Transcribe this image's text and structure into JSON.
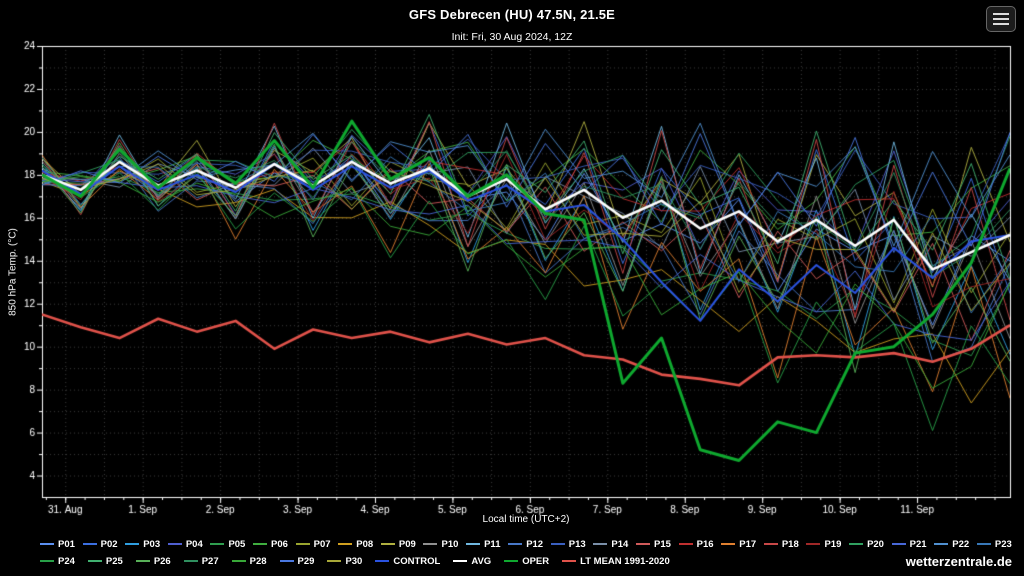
{
  "header": {
    "title": "GFS Debrecen (HU) 47.5N, 21.5E",
    "subtitle": "Init: Fri, 30 Aug 2024, 12Z"
  },
  "watermark": "wetterzentrale.de",
  "axes": {
    "x_label": "Local time (UTC+2)",
    "y_label": "850 hPa Temp. (°C)",
    "y_tick_labels": [
      24,
      22,
      20,
      18,
      16,
      14,
      12,
      10,
      8,
      6,
      4
    ],
    "x_tick_labels": [
      "31. Aug",
      "1. Sep",
      "2. Sep",
      "3. Sep",
      "4. Sep",
      "5. Sep",
      "6. Sep",
      "7. Sep",
      "8. Sep",
      "9. Sep",
      "10. Sep",
      "11. Sep"
    ]
  },
  "chart_data": {
    "type": "line",
    "title": "GFS Debrecen (HU) 47.5N, 21.5E",
    "subtitle": "Init: Fri, 30 Aug 2024, 12Z",
    "xlabel": "Local time (UTC+2)",
    "ylabel": "850 hPa Temp. (°C)",
    "ylim": [
      3,
      24
    ],
    "x_span_days": 12.5,
    "x_step_days": 0.5,
    "x_label_offset_days": 0.3,
    "grid_on": true,
    "grid_color": "#3d3d3d",
    "axis_color": "#ffffff",
    "background": "#000000",
    "legend_position": "bottom",
    "series": [
      {
        "name": "AVG",
        "color": "#ffffff",
        "width": 2.6,
        "values": [
          18.0,
          17.3,
          18.6,
          17.5,
          18.2,
          17.4,
          18.5,
          17.5,
          18.6,
          17.6,
          18.3,
          17.0,
          17.8,
          16.4,
          17.3,
          16.0,
          16.8,
          15.5,
          16.3,
          14.9,
          15.9,
          14.7,
          15.9,
          13.6,
          14.4,
          15.2
        ]
      },
      {
        "name": "OPER",
        "color": "#0fa82f",
        "width": 3,
        "values": [
          18.0,
          17.0,
          19.2,
          17.4,
          18.8,
          17.6,
          19.6,
          17.4,
          20.5,
          17.8,
          18.8,
          17.0,
          18.0,
          16.2,
          15.9,
          8.3,
          10.4,
          5.2,
          4.7,
          6.5,
          6.0,
          9.7,
          10.0,
          11.5,
          13.9,
          18.3
        ]
      },
      {
        "name": "CONTROL",
        "color": "#2a52e0",
        "width": 2,
        "values": [
          18.2,
          17.1,
          18.4,
          17.3,
          18.0,
          17.2,
          18.5,
          17.3,
          18.4,
          17.4,
          18.2,
          16.8,
          17.5,
          16.3,
          16.6,
          15.0,
          13.0,
          11.2,
          13.6,
          12.1,
          13.8,
          12.5,
          14.6,
          13.2,
          14.9,
          15.2
        ]
      },
      {
        "name": "LT MEAN 1991-2020",
        "color": "#e0524a",
        "width": 2.6,
        "values": [
          11.5,
          10.9,
          10.4,
          11.3,
          10.7,
          11.2,
          9.9,
          10.8,
          10.4,
          10.7,
          10.2,
          10.6,
          10.1,
          10.4,
          9.6,
          9.4,
          8.7,
          8.5,
          8.2,
          9.5,
          9.6,
          9.5,
          9.7,
          9.3,
          9.9,
          11.0
        ]
      }
    ],
    "legend_main_order": [
      "CONTROL",
      "AVG",
      "OPER",
      "LT MEAN 1991-2020"
    ],
    "members_spread": {
      "base": 0.8,
      "growth": 2.6,
      "freq1": 6.283,
      "freq2": 3.7
    },
    "members": [
      {
        "name": "P01",
        "color": "#5b8ff0",
        "params": [
          0.3,
          0.7,
          0.4,
          -1.0
        ]
      },
      {
        "name": "P02",
        "color": "#3b6fe0",
        "params": [
          1.1,
          0.5,
          0.6,
          0.5
        ]
      },
      {
        "name": "P03",
        "color": "#2f9ee0",
        "params": [
          2.0,
          0.8,
          0.3,
          -2.5
        ]
      },
      {
        "name": "P04",
        "color": "#4f5fd0",
        "params": [
          2.8,
          0.6,
          0.5,
          1.2
        ]
      },
      {
        "name": "P05",
        "color": "#2f9e4f",
        "params": [
          3.5,
          0.9,
          0.2,
          -4.0
        ]
      },
      {
        "name": "P06",
        "color": "#3fae3f",
        "params": [
          4.2,
          0.4,
          0.7,
          2.0
        ]
      },
      {
        "name": "P07",
        "color": "#9aa52f",
        "params": [
          5.0,
          0.7,
          0.5,
          -0.5
        ]
      },
      {
        "name": "P08",
        "color": "#d0a020",
        "params": [
          5.7,
          0.5,
          0.4,
          -5.5
        ]
      },
      {
        "name": "P09",
        "color": "#b0b040",
        "params": [
          0.6,
          0.8,
          0.6,
          1.5
        ]
      },
      {
        "name": "P10",
        "color": "#909090",
        "params": [
          1.4,
          0.6,
          0.3,
          -1.8
        ]
      },
      {
        "name": "P11",
        "color": "#70b8e0",
        "params": [
          2.2,
          0.9,
          0.5,
          0.8
        ]
      },
      {
        "name": "P12",
        "color": "#4878c8",
        "params": [
          3.0,
          0.5,
          0.7,
          -3.2
        ]
      },
      {
        "name": "P13",
        "color": "#3a5fbf",
        "params": [
          3.8,
          0.7,
          0.4,
          2.4
        ]
      },
      {
        "name": "P14",
        "color": "#7a8fa8",
        "params": [
          4.5,
          0.6,
          0.6,
          -0.2
        ]
      },
      {
        "name": "P15",
        "color": "#d05a5a",
        "params": [
          5.3,
          0.8,
          0.3,
          -2.0
        ]
      },
      {
        "name": "P16",
        "color": "#c03030",
        "params": [
          0.1,
          0.5,
          0.5,
          1.0
        ]
      },
      {
        "name": "P17",
        "color": "#e08030",
        "params": [
          0.9,
          0.7,
          0.6,
          -4.5
        ]
      },
      {
        "name": "P18",
        "color": "#c84848",
        "params": [
          1.7,
          0.9,
          0.4,
          0.3
        ]
      },
      {
        "name": "P19",
        "color": "#a02828",
        "params": [
          2.5,
          0.6,
          0.5,
          -1.2
        ]
      },
      {
        "name": "P20",
        "color": "#30a060",
        "params": [
          3.3,
          0.8,
          0.7,
          1.8
        ]
      },
      {
        "name": "P21",
        "color": "#4868d8",
        "params": [
          4.0,
          0.5,
          0.3,
          -3.8
        ]
      },
      {
        "name": "P22",
        "color": "#5090d0",
        "params": [
          4.8,
          0.7,
          0.5,
          2.8
        ]
      },
      {
        "name": "P23",
        "color": "#3878b8",
        "params": [
          5.5,
          0.6,
          0.6,
          -0.8
        ]
      },
      {
        "name": "P24",
        "color": "#28a048",
        "params": [
          0.4,
          0.9,
          0.4,
          -6.0
        ]
      },
      {
        "name": "P25",
        "color": "#40b070",
        "params": [
          1.2,
          0.5,
          0.6,
          1.4
        ]
      },
      {
        "name": "P26",
        "color": "#58b058",
        "params": [
          2.1,
          0.8,
          0.5,
          -2.8
        ]
      },
      {
        "name": "P27",
        "color": "#2f8f5f",
        "params": [
          2.9,
          0.6,
          0.4,
          0.6
        ]
      },
      {
        "name": "P28",
        "color": "#38a838",
        "params": [
          3.6,
          0.7,
          0.6,
          -5.0
        ]
      },
      {
        "name": "P29",
        "color": "#4a78e0",
        "params": [
          4.4,
          0.9,
          0.3,
          2.2
        ]
      },
      {
        "name": "P30",
        "color": "#a8a838",
        "params": [
          5.1,
          0.6,
          0.5,
          -1.5
        ]
      }
    ],
    "legend_row1_count": 23
  }
}
